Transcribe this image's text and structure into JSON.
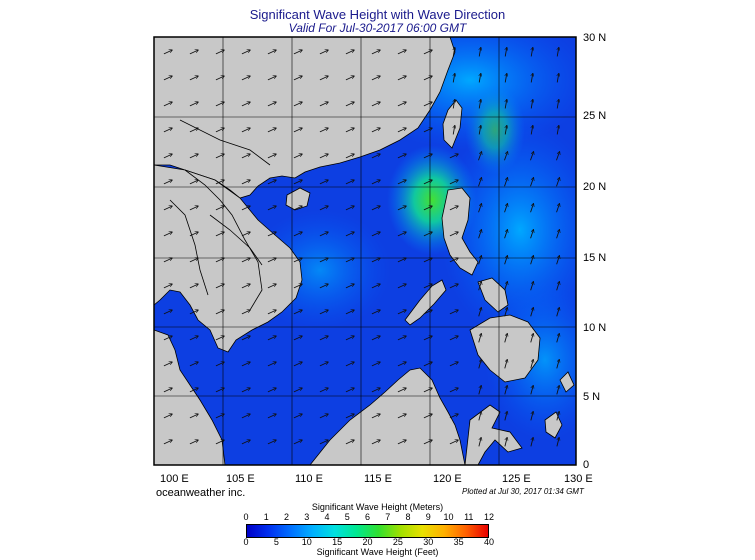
{
  "title": "Significant Wave Height with Wave Direction",
  "subtitle": "Valid For Jul-30-2017 06:00 GMT",
  "credit": "oceanweather inc.",
  "plotted": "Plotted at Jul 30, 2017 01:34 GMT",
  "longitude_labels": [
    "100 E",
    "105 E",
    "110 E",
    "115 E",
    "120 E",
    "125 E",
    "130 E"
  ],
  "latitude_labels": [
    "30 N",
    "25 N",
    "20 N",
    "15 N",
    "10 N",
    "5 N",
    "0"
  ],
  "colorbar": {
    "title_meters": "Significant Wave Height (Meters)",
    "title_feet": "Significant Wave Height (Feet)",
    "meters_ticks": [
      "0",
      "1",
      "2",
      "3",
      "4",
      "5",
      "6",
      "7",
      "8",
      "9",
      "10",
      "11",
      "12"
    ],
    "feet_ticks": [
      "0",
      "5",
      "10",
      "15",
      "20",
      "25",
      "30",
      "35",
      "40"
    ],
    "colors": [
      "#0000c8",
      "#0030f0",
      "#0070ff",
      "#00b0ff",
      "#00e0e0",
      "#00e890",
      "#30e030",
      "#a0e000",
      "#e8e000",
      "#ffb000",
      "#ff6000",
      "#e80000"
    ]
  },
  "colors": {
    "land": "#c8c8c8",
    "ocean_low": "#1040e8",
    "ocean_mid": "#0090ff",
    "ocean_high": "#30d060",
    "title": "#1a1a8c"
  }
}
